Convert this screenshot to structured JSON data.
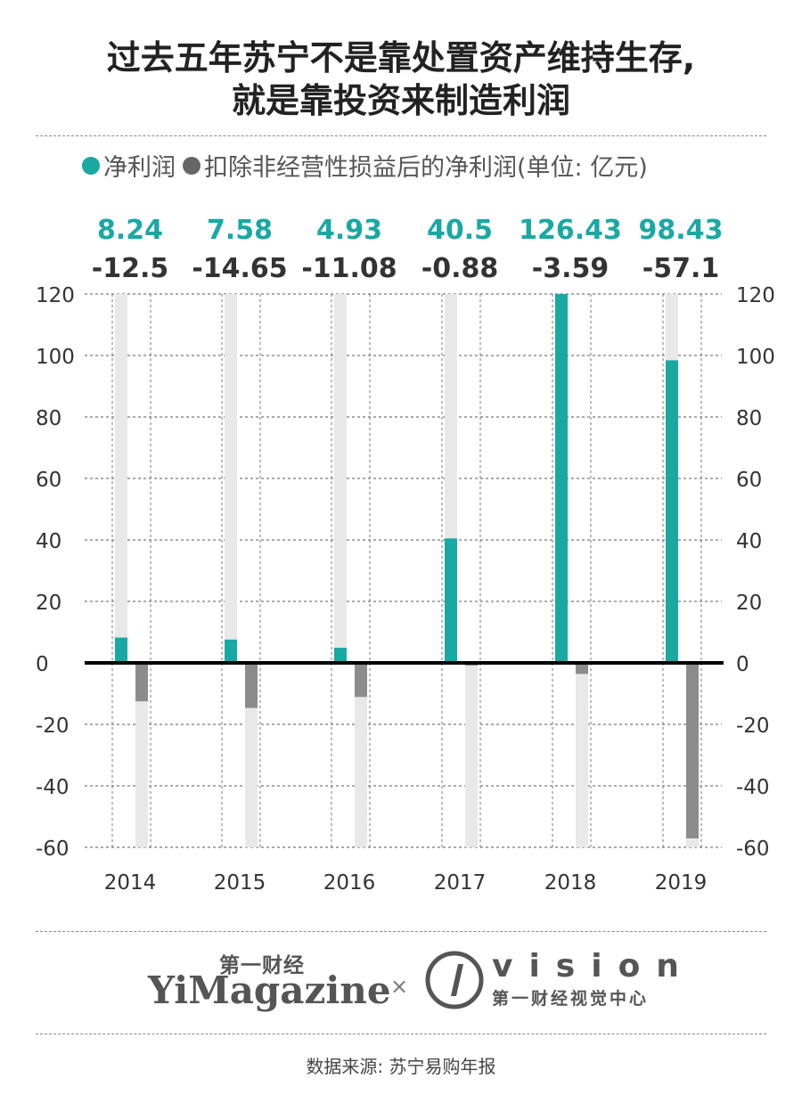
{
  "title": {
    "line1": "过去五年苏宁不是靠处置资产维持生存,",
    "line2": "就是靠投资来制造利润"
  },
  "legend": {
    "net_label": "净利润",
    "adj_label": "扣除非经营性损益后的净利润(单位: 亿元)"
  },
  "colors": {
    "net": "#1aa8a3",
    "adj": "#8c8c8c",
    "track": "#e8e8e8",
    "adj_value_text": "#333333"
  },
  "chart_data": {
    "type": "bar",
    "title": "过去五年苏宁不是靠处置资产维持生存,就是靠投资来制造利润",
    "xlabel": "",
    "ylabel": "亿元",
    "categories": [
      "2014",
      "2015",
      "2016",
      "2017",
      "2018",
      "2019"
    ],
    "series": [
      {
        "name": "净利润",
        "values": [
          8.24,
          7.58,
          4.93,
          40.5,
          126.43,
          98.43
        ],
        "labels": [
          "8.24",
          "7.58",
          "4.93",
          "40.5",
          "126.43",
          "98.43"
        ]
      },
      {
        "name": "扣除非经营性损益后的净利润",
        "values": [
          -12.5,
          -14.65,
          -11.08,
          -0.88,
          -3.59,
          -57.1
        ],
        "labels": [
          "-12.5",
          "-14.65",
          "-11.08",
          "-0.88",
          "-3.59",
          "-57.1"
        ]
      }
    ],
    "ylim": [
      -60,
      120
    ],
    "yticks": [
      120,
      100,
      80,
      60,
      40,
      20,
      0,
      -20,
      -40,
      -60
    ],
    "ytick_labels": [
      "120",
      "100",
      "80",
      "60",
      "40",
      "20",
      "0",
      "-20",
      "-40",
      "-60"
    ],
    "grid": true,
    "legend_position": "top-left"
  },
  "branding": {
    "yimag_cn": "第一财经",
    "yimag_en": "YiMagazine",
    "cross": "×",
    "vision_word": "vision",
    "vision_cn": "第一财经视觉中心"
  },
  "source": "数据来源: 苏宁易购年报"
}
